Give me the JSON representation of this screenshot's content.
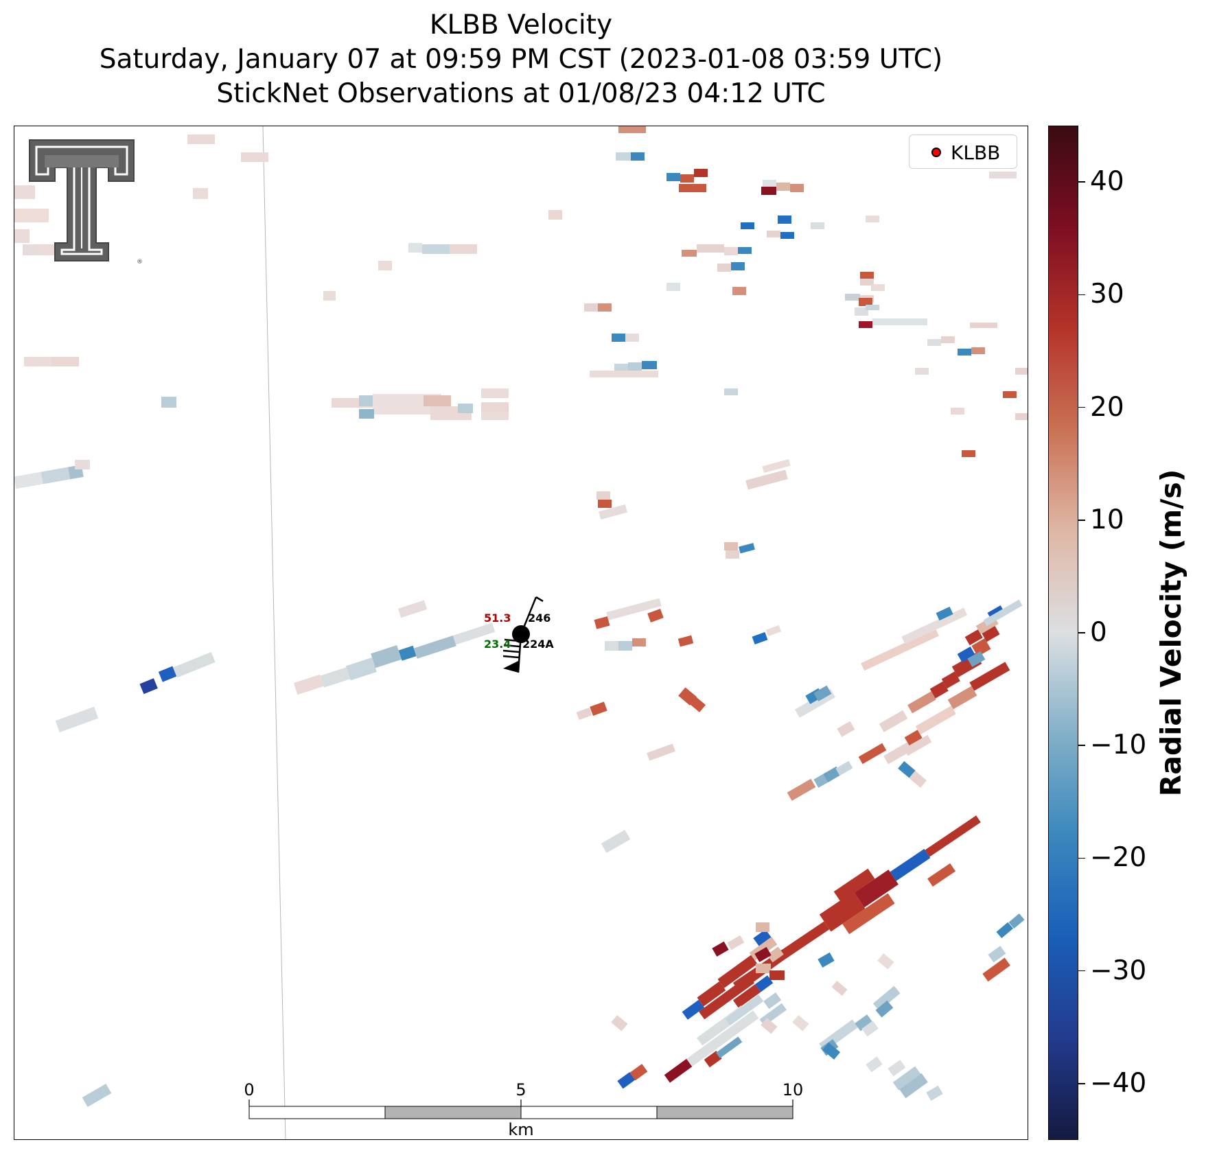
{
  "header": {
    "title_line1": "KLBB Velocity",
    "title_line2": "Saturday, January 07 at 09:59 PM CST (2023-01-08 03:59 UTC)",
    "title_line3": "StickNet Observations at 01/08/23 04:12 UTC"
  },
  "legend": {
    "label": "KLBB",
    "marker_color": "#ff0000"
  },
  "station": {
    "value_red": "51.3",
    "value_green": "23.4",
    "direction_label": "246",
    "station_id": "224A",
    "red_color": "#b00000",
    "green_color": "#007000"
  },
  "scale_bar": {
    "labels": [
      "0",
      "5",
      "10"
    ],
    "unit": "km"
  },
  "colorbar": {
    "title": "Radial Velocity (m/s)",
    "range": [
      -45,
      45
    ],
    "ticks": [
      "40",
      "30",
      "20",
      "10",
      "0",
      "−10",
      "−20",
      "−30",
      "−40"
    ],
    "tick_values": [
      40,
      30,
      20,
      10,
      0,
      -10,
      -20,
      -30,
      -40
    ],
    "colormap": [
      "#141a40",
      "#233b8e",
      "#1a5fb9",
      "#3a88bd",
      "#83b0c8",
      "#dcdfe2",
      "#dfb7a6",
      "#c97255",
      "#b5342a",
      "#7e0e22",
      "#3a0b13"
    ]
  },
  "logo": {
    "name": "texas-tech-double-t-logo"
  }
}
